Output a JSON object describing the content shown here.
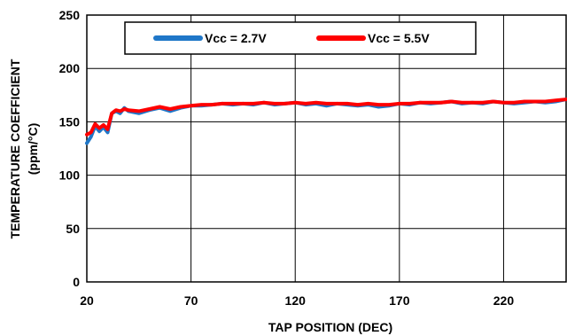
{
  "chart_data": {
    "type": "line",
    "xlabel": "TAP POSITION (DEC)",
    "ylabel_lines": [
      "TEMPERATURE COEFFICIENT",
      "(ppm/°C)"
    ],
    "xlim": [
      20,
      250
    ],
    "ylim": [
      0,
      250
    ],
    "x_ticks": [
      20,
      70,
      120,
      170,
      220
    ],
    "y_ticks": [
      0,
      50,
      100,
      150,
      200,
      250
    ],
    "grid": true,
    "legend_position": "top-center",
    "series": [
      {
        "name": "Vcc = 2.7V",
        "color": "#1f77c8",
        "x": [
          20,
          22,
          24,
          26,
          28,
          30,
          32,
          34,
          36,
          38,
          40,
          45,
          50,
          55,
          60,
          65,
          70,
          75,
          80,
          85,
          90,
          95,
          100,
          105,
          110,
          115,
          120,
          125,
          130,
          135,
          140,
          145,
          150,
          155,
          160,
          165,
          170,
          175,
          180,
          185,
          190,
          195,
          200,
          205,
          210,
          215,
          220,
          225,
          230,
          235,
          240,
          245,
          250
        ],
        "values": [
          130,
          136,
          146,
          141,
          145,
          140,
          158,
          160,
          158,
          163,
          160,
          158,
          161,
          163,
          160,
          163,
          165,
          165,
          166,
          167,
          166,
          167,
          166,
          168,
          166,
          167,
          168,
          166,
          167,
          165,
          167,
          166,
          165,
          166,
          164,
          165,
          167,
          166,
          168,
          167,
          168,
          169,
          167,
          168,
          167,
          169,
          168,
          167,
          168,
          169,
          168,
          169,
          171
        ]
      },
      {
        "name": "Vcc = 5.5V",
        "color": "#ff0000",
        "x": [
          20,
          22,
          24,
          26,
          28,
          30,
          32,
          34,
          36,
          38,
          40,
          45,
          50,
          55,
          60,
          65,
          70,
          75,
          80,
          85,
          90,
          95,
          100,
          105,
          110,
          115,
          120,
          125,
          130,
          135,
          140,
          145,
          150,
          155,
          160,
          165,
          170,
          175,
          180,
          185,
          190,
          195,
          200,
          205,
          210,
          215,
          220,
          225,
          230,
          235,
          240,
          245,
          250
        ],
        "values": [
          138,
          140,
          148,
          144,
          147,
          143,
          158,
          161,
          160,
          162,
          161,
          160,
          162,
          164,
          162,
          164,
          165,
          166,
          166,
          167,
          167,
          167,
          167,
          168,
          167,
          167,
          168,
          167,
          168,
          167,
          167,
          167,
          166,
          167,
          166,
          166,
          167,
          167,
          168,
          168,
          168,
          169,
          168,
          168,
          168,
          169,
          168,
          168,
          169,
          169,
          169,
          170,
          171
        ]
      }
    ]
  }
}
